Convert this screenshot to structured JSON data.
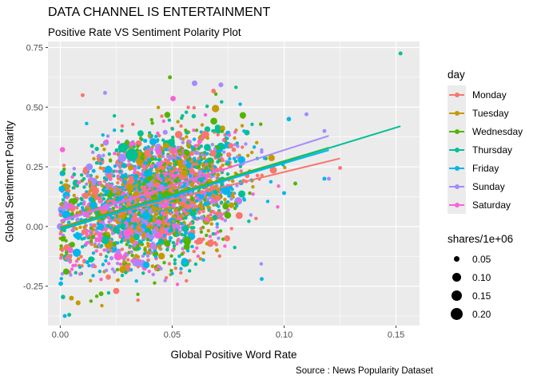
{
  "header": {
    "title": "DATA CHANNEL IS ENTERTAINMENT",
    "subtitle": "Positive Rate VS Sentiment Polarity Plot",
    "caption": "Source : News Popularity Dataset"
  },
  "chart_data": {
    "type": "scatter",
    "title": "DATA CHANNEL IS ENTERTAINMENT",
    "subtitle": "Positive Rate VS Sentiment Polarity Plot",
    "xlabel": "Global Positive Word Rate",
    "ylabel": "Global Sentiment Polarity",
    "xlim": [
      -0.0055,
      0.1605
    ],
    "ylim": [
      -0.415,
      0.775
    ],
    "x_ticks": [
      0.0,
      0.05,
      0.1,
      0.15
    ],
    "x_tick_labels": [
      "0.00",
      "0.05",
      "0.10",
      "0.15"
    ],
    "y_ticks": [
      -0.25,
      0.0,
      0.25,
      0.5,
      0.75
    ],
    "y_tick_labels": [
      "-0.25",
      "0.00",
      "0.25",
      "0.50",
      "0.75"
    ],
    "grid": true,
    "legend_color": {
      "title": "day",
      "placement": "right",
      "entries": [
        {
          "name": "Monday",
          "color": "#F8766D"
        },
        {
          "name": "Tuesday",
          "color": "#C49A00"
        },
        {
          "name": "Wednesday",
          "color": "#53B400"
        },
        {
          "name": "Thursday",
          "color": "#00C094"
        },
        {
          "name": "Friday",
          "color": "#00B6EB"
        },
        {
          "name": "Sunday",
          "color": "#A58AFF"
        },
        {
          "name": "Saturday",
          "color": "#FB61D7"
        }
      ]
    },
    "legend_size": {
      "title": "shares/1e+06",
      "placement": "right",
      "entries": [
        {
          "label": "0.05",
          "value": 0.05
        },
        {
          "label": "0.10",
          "value": 0.1
        },
        {
          "label": "0.15",
          "value": 0.15
        },
        {
          "label": "0.20",
          "value": 0.2
        }
      ]
    },
    "trend_lines": [
      {
        "day": "Sunday",
        "x": [
          0.0,
          0.12
        ],
        "y": [
          0.02,
          0.38
        ]
      },
      {
        "day": "Saturday",
        "x": [
          0.0,
          0.08
        ],
        "y": [
          0.025,
          0.26
        ]
      },
      {
        "day": "Tuesday",
        "x": [
          0.0,
          0.105
        ],
        "y": [
          -0.005,
          0.28
        ]
      },
      {
        "day": "Monday",
        "x": [
          0.0,
          0.125
        ],
        "y": [
          0.0,
          0.285
        ]
      },
      {
        "day": "Wednesday",
        "x": [
          0.0,
          0.12
        ],
        "y": [
          -0.005,
          0.33
        ]
      },
      {
        "day": "Thursday",
        "x": [
          0.0,
          0.152
        ],
        "y": [
          -0.015,
          0.42
        ]
      },
      {
        "day": "Friday",
        "x": [
          0.0,
          0.12
        ],
        "y": [
          -0.01,
          0.32
        ]
      }
    ],
    "cloud": {
      "center_x": 0.042,
      "center_y": 0.12,
      "spread_x": 0.02,
      "spread_y": 0.13,
      "slope": 2.6,
      "count": 2600
    },
    "notable_points": [
      {
        "x": 0.152,
        "y": 0.725,
        "day": "Thursday",
        "shares": 0.02
      },
      {
        "x": 0.049,
        "y": 0.625,
        "day": "Wednesday",
        "shares": 0.02
      },
      {
        "x": 0.0,
        "y": 0.0,
        "day": "Monday",
        "shares": 0.03
      },
      {
        "x": 0.0,
        "y": 0.0,
        "day": "Sunday",
        "shares": 0.06
      },
      {
        "x": 0.002,
        "y": -0.375,
        "day": "Friday",
        "shares": 0.02
      },
      {
        "x": 0.004,
        "y": -0.37,
        "day": "Thursday",
        "shares": 0.02
      },
      {
        "x": 0.09,
        "y": -0.22,
        "day": "Friday",
        "shares": 0.02
      },
      {
        "x": 0.125,
        "y": 0.245,
        "day": "Monday",
        "shares": 0.02
      },
      {
        "x": 0.118,
        "y": 0.4,
        "day": "Sunday",
        "shares": 0.02
      },
      {
        "x": 0.11,
        "y": 0.47,
        "day": "Sunday",
        "shares": 0.02
      },
      {
        "x": 0.06,
        "y": 0.6,
        "day": "Sunday",
        "shares": 0.04
      },
      {
        "x": 0.02,
        "y": 0.56,
        "day": "Sunday",
        "shares": 0.02
      },
      {
        "x": 0.01,
        "y": 0.55,
        "day": "Monday",
        "shares": 0.02
      },
      {
        "x": 0.032,
        "y": 0.3,
        "day": "Thursday",
        "shares": 0.2
      },
      {
        "x": 0.028,
        "y": 0.33,
        "day": "Thursday",
        "shares": 0.12
      },
      {
        "x": 0.1,
        "y": 0.14,
        "day": "Friday",
        "shares": 0.02
      },
      {
        "x": 0.105,
        "y": 0.18,
        "day": "Wednesday",
        "shares": 0.02
      },
      {
        "x": 0.12,
        "y": 0.2,
        "day": "Sunday",
        "shares": 0.02
      },
      {
        "x": 0.118,
        "y": 0.2,
        "day": "Friday",
        "shares": 0.02
      },
      {
        "x": 0.005,
        "y": -0.3,
        "day": "Tuesday",
        "shares": 0.03
      },
      {
        "x": 0.008,
        "y": -0.32,
        "day": "Tuesday",
        "shares": 0.03
      },
      {
        "x": 0.013,
        "y": 0.25,
        "day": "Sunday",
        "shares": 0.06
      },
      {
        "x": 0.025,
        "y": -0.27,
        "day": "Monday",
        "shares": 0.05
      },
      {
        "x": 0.07,
        "y": -0.1,
        "day": "Tuesday",
        "shares": 0.02
      }
    ]
  }
}
